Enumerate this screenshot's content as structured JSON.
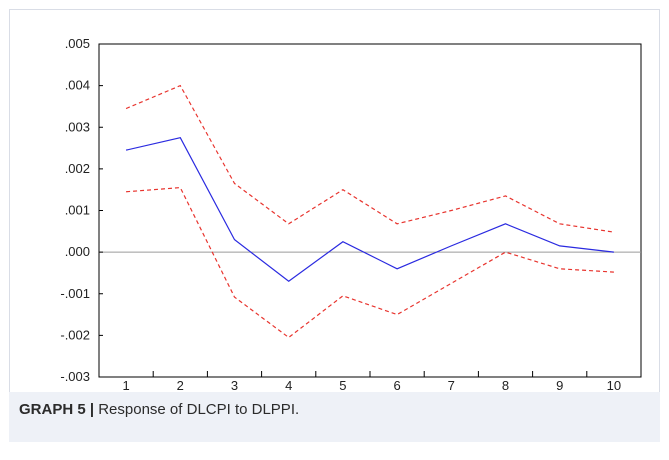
{
  "caption": {
    "label": "GRAPH 5 |",
    "text": "Response of DLCPI to DLPPI."
  },
  "chart_data": {
    "type": "line",
    "title": "",
    "xlabel": "",
    "ylabel": "",
    "x": [
      1,
      2,
      3,
      4,
      5,
      6,
      7,
      8,
      9,
      10
    ],
    "x_tick_labels": [
      "1",
      "2",
      "3",
      "4",
      "5",
      "6",
      "7",
      "8",
      "9",
      "10"
    ],
    "ylim": [
      -0.003,
      0.005
    ],
    "y_ticks": [
      0.005,
      0.004,
      0.003,
      0.002,
      0.001,
      0.0,
      -0.001,
      -0.002,
      -0.003
    ],
    "y_tick_labels": [
      ".005",
      ".004",
      ".003",
      ".002",
      ".001",
      ".000",
      "-.001",
      "-.002",
      "-.003"
    ],
    "zero_line": true,
    "grid": false,
    "series": [
      {
        "values": [
          0.00245,
          0.00275,
          0.0003,
          -0.0007,
          0.00025,
          -0.0004,
          0.00015,
          0.00068,
          0.00015,
          0.0
        ],
        "color": "#2a2ae0",
        "style": "solid"
      },
      {
        "values": [
          0.00345,
          0.004,
          0.00165,
          0.00068,
          0.0015,
          0.00068,
          0.001,
          0.00135,
          0.00068,
          0.00048
        ],
        "color": "#e8342e",
        "style": "dashed"
      },
      {
        "values": [
          0.00145,
          0.00155,
          -0.00108,
          -0.00205,
          -0.00105,
          -0.0015,
          -0.00075,
          0.0,
          -0.0004,
          -0.00048
        ],
        "color": "#e8342e",
        "style": "dashed"
      }
    ]
  }
}
